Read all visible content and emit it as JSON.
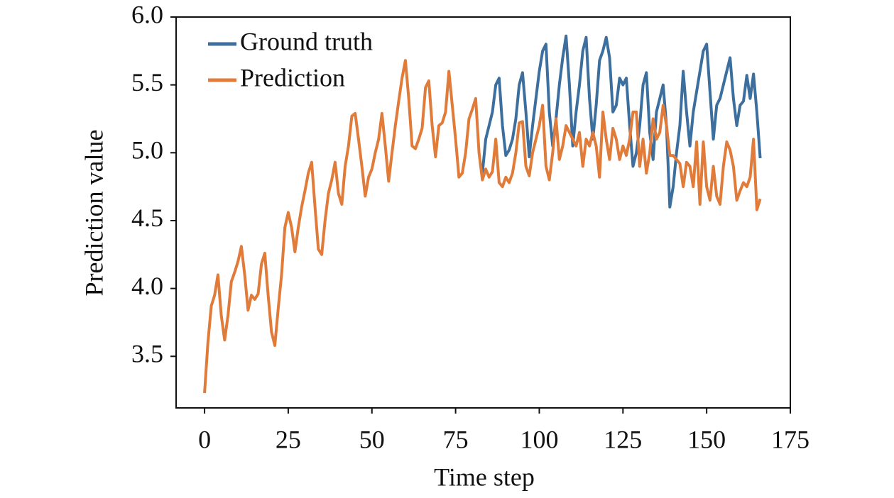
{
  "chart_data": {
    "type": "line",
    "x_label": "Time step",
    "y_label": "Prediction value",
    "xlim": [
      -8.5,
      175
    ],
    "ylim": [
      3.12,
      6.0
    ],
    "xticks": [
      0,
      25,
      50,
      75,
      100,
      125,
      150,
      175
    ],
    "yticks": [
      {
        "value": 3.5,
        "label": "3.5"
      },
      {
        "value": 4,
        "label": "4.0"
      },
      {
        "value": 4.5,
        "label": "4.5"
      },
      {
        "value": 5,
        "label": "5.0"
      },
      {
        "value": 5.5,
        "label": "5.5"
      },
      {
        "value": 6,
        "label": "6.0"
      }
    ],
    "legend": "upper left",
    "x": [
      0,
      1,
      2,
      3,
      4,
      5,
      6,
      7,
      8,
      9,
      10,
      11,
      12,
      13,
      14,
      15,
      16,
      17,
      18,
      19,
      20,
      21,
      22,
      23,
      24,
      25,
      26,
      27,
      28,
      29,
      30,
      31,
      32,
      33,
      34,
      35,
      36,
      37,
      38,
      39,
      40,
      41,
      42,
      43,
      44,
      45,
      46,
      47,
      48,
      49,
      50,
      51,
      52,
      53,
      54,
      55,
      56,
      57,
      58,
      59,
      60,
      61,
      62,
      63,
      64,
      65,
      66,
      67,
      68,
      69,
      70,
      71,
      72,
      73,
      74,
      75,
      76,
      77,
      78,
      79,
      80,
      81,
      82,
      83,
      84,
      85,
      86,
      87,
      88,
      89,
      90,
      91,
      92,
      93,
      94,
      95,
      96,
      97,
      98,
      99,
      100,
      101,
      102,
      103,
      104,
      105,
      106,
      107,
      108,
      109,
      110,
      111,
      112,
      113,
      114,
      115,
      116,
      117,
      118,
      119,
      120,
      121,
      122,
      123,
      124,
      125,
      126,
      127,
      128,
      129,
      130,
      131,
      132,
      133,
      134,
      135,
      136,
      137,
      138,
      139,
      140,
      141,
      142,
      143,
      144,
      145,
      146,
      147,
      148,
      149,
      150,
      151,
      152,
      153,
      154,
      155,
      156,
      157,
      158,
      159,
      160,
      161,
      162,
      163,
      164,
      165,
      166
    ],
    "series": [
      {
        "name": "Ground truth",
        "color": "#3d6f9e",
        "values": [
          null,
          null,
          null,
          null,
          null,
          null,
          null,
          null,
          null,
          null,
          null,
          null,
          null,
          null,
          null,
          null,
          null,
          null,
          null,
          null,
          null,
          null,
          null,
          null,
          null,
          null,
          null,
          null,
          null,
          null,
          null,
          null,
          null,
          null,
          null,
          null,
          null,
          null,
          null,
          null,
          null,
          null,
          null,
          null,
          null,
          null,
          null,
          null,
          null,
          null,
          null,
          null,
          null,
          null,
          null,
          null,
          null,
          null,
          null,
          null,
          null,
          null,
          null,
          null,
          null,
          null,
          null,
          null,
          null,
          null,
          null,
          null,
          null,
          null,
          null,
          null,
          null,
          null,
          null,
          null,
          null,
          null,
          null,
          4.85,
          5.1,
          5.2,
          5.3,
          5.5,
          5.55,
          5.2,
          4.98,
          5.02,
          5.1,
          5.25,
          5.5,
          5.59,
          5.3,
          4.97,
          5.2,
          5.4,
          5.6,
          5.75,
          5.8,
          5.3,
          5.05,
          5.25,
          5.5,
          5.7,
          5.86,
          5.5,
          5.05,
          5.3,
          5.5,
          5.75,
          5.85,
          5.4,
          5.1,
          5.35,
          5.68,
          5.75,
          5.85,
          5.7,
          5.3,
          5.35,
          5.55,
          5.5,
          5.55,
          5.2,
          4.9,
          5.0,
          5.2,
          5.5,
          5.59,
          5.15,
          4.95,
          5.3,
          5.4,
          5.5,
          5.2,
          4.6,
          4.75,
          5.0,
          5.2,
          5.6,
          5.3,
          5.05,
          5.3,
          5.45,
          5.6,
          5.75,
          5.8,
          5.45,
          5.1,
          5.35,
          5.4,
          5.5,
          5.6,
          5.7,
          5.4,
          5.2,
          5.35,
          5.38,
          5.57,
          5.4,
          5.58,
          5.3,
          4.96
        ]
      },
      {
        "name": "Prediction",
        "color": "#e07b3a",
        "values": [
          3.23,
          3.6,
          3.87,
          3.95,
          4.1,
          3.8,
          3.62,
          3.8,
          4.05,
          4.12,
          4.2,
          4.31,
          4.1,
          3.84,
          3.95,
          3.92,
          3.96,
          4.18,
          4.26,
          3.95,
          3.68,
          3.58,
          3.85,
          4.1,
          4.45,
          4.56,
          4.45,
          4.27,
          4.45,
          4.6,
          4.72,
          4.85,
          4.93,
          4.6,
          4.29,
          4.25,
          4.5,
          4.7,
          4.8,
          4.93,
          4.7,
          4.62,
          4.9,
          5.05,
          5.27,
          5.29,
          5.1,
          4.9,
          4.68,
          4.82,
          4.88,
          5.0,
          5.1,
          5.29,
          5.05,
          4.79,
          5.0,
          5.2,
          5.38,
          5.55,
          5.68,
          5.4,
          5.05,
          5.03,
          5.1,
          5.18,
          5.48,
          5.53,
          5.2,
          4.97,
          5.2,
          5.22,
          5.3,
          5.6,
          5.35,
          5.1,
          4.82,
          4.85,
          5.0,
          5.25,
          5.32,
          5.4,
          5.0,
          4.8,
          4.88,
          4.82,
          4.86,
          5.1,
          4.78,
          4.75,
          4.82,
          4.78,
          4.85,
          5.0,
          5.22,
          5.23,
          4.9,
          4.83,
          5.0,
          5.1,
          5.2,
          5.35,
          4.9,
          4.8,
          5.0,
          5.25,
          4.95,
          5.05,
          5.2,
          5.15,
          5.1,
          5.05,
          5.15,
          4.9,
          5.1,
          5.05,
          5.15,
          5.05,
          4.82,
          5.3,
          5.1,
          4.95,
          5.18,
          5.1,
          4.95,
          5.05,
          4.98,
          5.1,
          5.3,
          5.3,
          4.9,
          5.1,
          4.85,
          5.0,
          5.25,
          5.1,
          5.15,
          5.35,
          5.2,
          4.98,
          4.98,
          4.95,
          4.92,
          4.75,
          4.93,
          4.9,
          4.75,
          5.08,
          4.62,
          5.08,
          4.75,
          4.65,
          4.9,
          4.68,
          4.62,
          4.9,
          5.08,
          5.02,
          4.9,
          4.65,
          4.72,
          4.78,
          4.75,
          4.82,
          5.1,
          4.58,
          4.66
        ]
      }
    ]
  }
}
